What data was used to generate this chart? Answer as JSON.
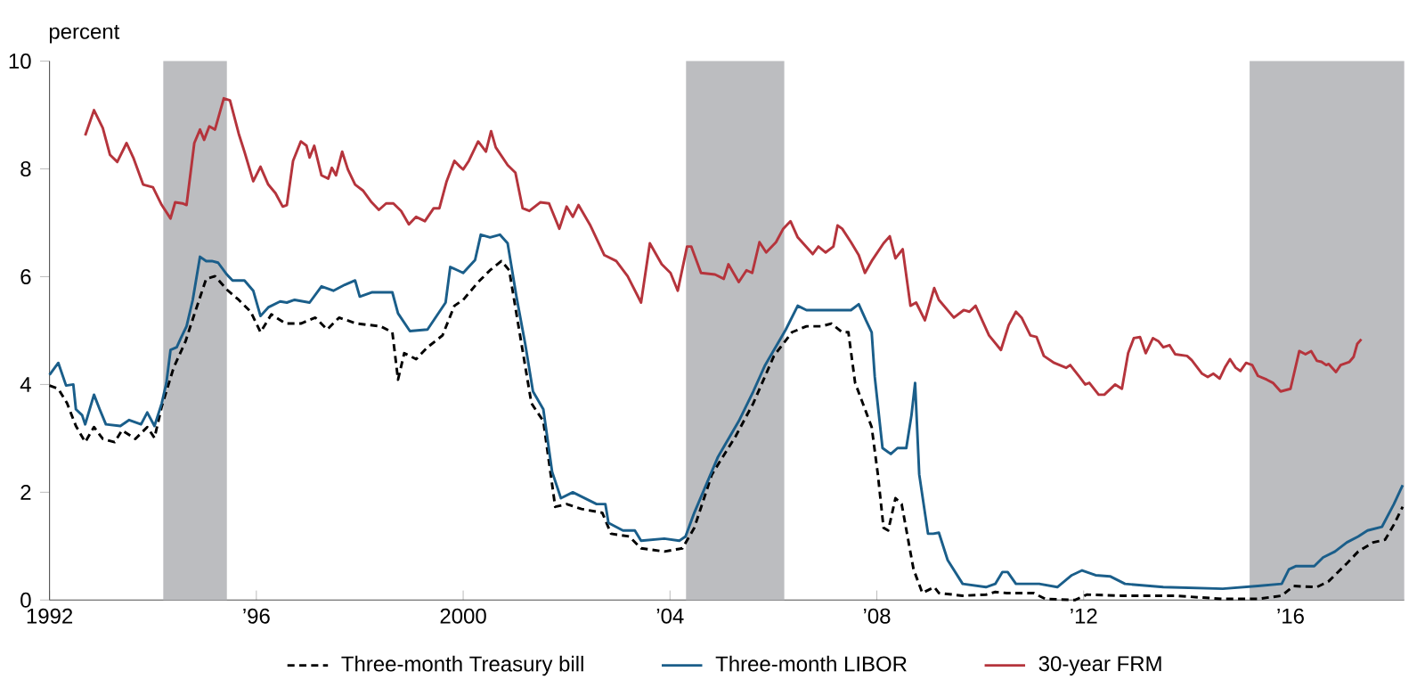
{
  "chart_data": {
    "type": "line",
    "ylabel": "percent",
    "xlim": [
      1992,
      2018.2
    ],
    "ylim": [
      0,
      10
    ],
    "xticks": [
      {
        "value": 1992,
        "label": "1992"
      },
      {
        "value": 1996,
        "label": "’96"
      },
      {
        "value": 2000,
        "label": "2000"
      },
      {
        "value": 2004,
        "label": "’04"
      },
      {
        "value": 2008,
        "label": "’08"
      },
      {
        "value": 2012,
        "label": "’12"
      },
      {
        "value": 2016,
        "label": "’16"
      }
    ],
    "yticks": [
      0,
      2,
      4,
      6,
      8,
      10
    ],
    "grid": false,
    "legend": "bottom",
    "bands": [
      {
        "axis": "x",
        "from": 1994.2,
        "to": 1995.43,
        "color": "#bcbdc0"
      },
      {
        "axis": "x",
        "from": 2004.31,
        "to": 2006.21,
        "color": "#bcbdc0"
      },
      {
        "axis": "x",
        "from": 2015.21,
        "to": 2018.2,
        "color": "#bcbdc0"
      }
    ],
    "series": [
      {
        "name": "Three-month Treasury bill",
        "color": "#000000",
        "line_style": "dashed",
        "x": [
          1992.0,
          1992.17,
          1992.34,
          1992.51,
          1992.69,
          1992.86,
          1993.03,
          1993.26,
          1993.4,
          1993.66,
          1993.89,
          1994.03,
          1994.17,
          1994.4,
          1994.63,
          1994.8,
          1995.03,
          1995.2,
          1995.43,
          1995.66,
          1995.89,
          1996.08,
          1996.29,
          1996.57,
          1996.86,
          1997.14,
          1997.37,
          1997.6,
          1997.94,
          1998.4,
          1998.63,
          1998.74,
          1998.86,
          1999.09,
          1999.31,
          1999.6,
          1999.83,
          2000.0,
          2000.29,
          2000.52,
          2000.74,
          2000.89,
          2001.09,
          2001.32,
          2001.55,
          2001.78,
          2002.0,
          2002.29,
          2002.69,
          2002.86,
          2003.21,
          2003.44,
          2003.89,
          2004.24,
          2004.47,
          2004.81,
          2005.27,
          2005.61,
          2006.01,
          2006.36,
          2006.64,
          2006.93,
          2007.12,
          2007.33,
          2007.45,
          2007.58,
          2007.9,
          2008.02,
          2008.13,
          2008.22,
          2008.36,
          2008.48,
          2008.71,
          2008.88,
          2009.11,
          2009.2,
          2009.66,
          2010.11,
          2010.29,
          2010.51,
          2011.03,
          2011.26,
          2011.83,
          2012.06,
          2012.74,
          2013.77,
          2014.69,
          2015.37,
          2015.83,
          2016.06,
          2016.51,
          2016.74,
          2017.09,
          2017.31,
          2017.6,
          2017.83,
          2018.0,
          2018.17
        ],
        "values": [
          3.98,
          3.92,
          3.65,
          3.23,
          2.93,
          3.21,
          2.99,
          2.93,
          3.15,
          2.99,
          3.21,
          3.01,
          3.59,
          4.31,
          4.8,
          5.3,
          5.96,
          6.01,
          5.76,
          5.57,
          5.35,
          4.97,
          5.3,
          5.13,
          5.13,
          5.24,
          5.02,
          5.24,
          5.13,
          5.08,
          4.97,
          4.09,
          4.58,
          4.47,
          4.69,
          4.91,
          5.46,
          5.57,
          5.9,
          6.12,
          6.29,
          6.12,
          4.97,
          3.65,
          3.32,
          1.73,
          1.78,
          1.69,
          1.62,
          1.23,
          1.18,
          0.96,
          0.9,
          0.96,
          1.34,
          2.33,
          3.04,
          3.65,
          4.53,
          4.97,
          5.08,
          5.08,
          5.13,
          4.97,
          4.97,
          4.03,
          3.21,
          2.33,
          1.34,
          1.29,
          1.89,
          1.78,
          0.57,
          0.13,
          0.24,
          0.13,
          0.08,
          0.1,
          0.15,
          0.13,
          0.13,
          0.02,
          0.0,
          0.1,
          0.08,
          0.08,
          0.02,
          0.02,
          0.08,
          0.26,
          0.24,
          0.35,
          0.68,
          0.9,
          1.07,
          1.12,
          1.4,
          1.73
        ]
      },
      {
        "name": "Three-month LIBOR",
        "color": "#1a5e8a",
        "line_style": "solid",
        "x": [
          1992.0,
          1992.17,
          1992.32,
          1992.46,
          1992.51,
          1992.63,
          1992.69,
          1992.86,
          1992.97,
          1993.09,
          1993.37,
          1993.54,
          1993.77,
          1993.89,
          1994.03,
          1994.17,
          1994.26,
          1994.34,
          1994.46,
          1994.54,
          1994.65,
          1994.77,
          1994.91,
          1995.03,
          1995.14,
          1995.26,
          1995.43,
          1995.54,
          1995.77,
          1995.94,
          1996.08,
          1996.23,
          1996.46,
          1996.59,
          1996.74,
          1997.03,
          1997.26,
          1997.49,
          1997.71,
          1997.91,
          1998.0,
          1998.23,
          1998.63,
          1998.74,
          1998.97,
          1999.31,
          1999.66,
          1999.75,
          1999.89,
          2000.0,
          2000.23,
          2000.34,
          2000.52,
          2000.71,
          2000.86,
          2001.03,
          2001.2,
          2001.35,
          2001.55,
          2001.72,
          2001.89,
          2002.12,
          2002.58,
          2002.75,
          2002.81,
          2003.09,
          2003.32,
          2003.44,
          2003.89,
          2004.18,
          2004.3,
          2004.47,
          2004.93,
          2005.33,
          2005.61,
          2005.84,
          2006.24,
          2006.47,
          2006.64,
          2007.5,
          2007.65,
          2007.79,
          2007.9,
          2007.96,
          2008.11,
          2008.27,
          2008.4,
          2008.57,
          2008.67,
          2008.74,
          2008.82,
          2008.99,
          2009.09,
          2009.2,
          2009.37,
          2009.66,
          2010.11,
          2010.29,
          2010.43,
          2010.53,
          2010.69,
          2011.14,
          2011.49,
          2011.77,
          2011.97,
          2012.23,
          2012.51,
          2012.8,
          2013.54,
          2014.69,
          2015.37,
          2015.83,
          2015.97,
          2016.11,
          2016.46,
          2016.63,
          2016.86,
          2017.09,
          2017.31,
          2017.49,
          2017.77,
          2018.0,
          2018.17
        ],
        "values": [
          4.18,
          4.4,
          3.98,
          4.0,
          3.54,
          3.43,
          3.26,
          3.81,
          3.54,
          3.26,
          3.23,
          3.34,
          3.26,
          3.48,
          3.23,
          3.65,
          4.03,
          4.64,
          4.69,
          4.86,
          5.08,
          5.57,
          6.37,
          6.29,
          6.29,
          6.26,
          6.04,
          5.93,
          5.93,
          5.74,
          5.27,
          5.43,
          5.54,
          5.52,
          5.57,
          5.52,
          5.82,
          5.74,
          5.85,
          5.93,
          5.63,
          5.71,
          5.71,
          5.32,
          4.99,
          5.02,
          5.52,
          6.18,
          6.12,
          6.07,
          6.31,
          6.78,
          6.73,
          6.78,
          6.62,
          5.63,
          4.75,
          3.87,
          3.54,
          2.38,
          1.89,
          2.0,
          1.78,
          1.78,
          1.43,
          1.29,
          1.29,
          1.1,
          1.14,
          1.1,
          1.18,
          1.62,
          2.66,
          3.32,
          3.87,
          4.36,
          5.02,
          5.46,
          5.38,
          5.38,
          5.49,
          5.19,
          4.97,
          4.14,
          2.82,
          2.71,
          2.82,
          2.82,
          3.43,
          4.03,
          2.33,
          1.23,
          1.23,
          1.25,
          0.74,
          0.3,
          0.24,
          0.3,
          0.52,
          0.52,
          0.3,
          0.3,
          0.24,
          0.46,
          0.55,
          0.46,
          0.44,
          0.3,
          0.24,
          0.21,
          0.26,
          0.3,
          0.57,
          0.63,
          0.63,
          0.79,
          0.9,
          1.07,
          1.18,
          1.29,
          1.36,
          1.78,
          2.13
        ]
      },
      {
        "name": "30-year FRM",
        "color": "#b5343c",
        "line_style": "solid",
        "x": [
          1992.69,
          1992.86,
          1993.03,
          1993.17,
          1993.31,
          1993.49,
          1993.62,
          1993.81,
          1994.0,
          1994.17,
          1994.34,
          1994.43,
          1994.57,
          1994.65,
          1994.8,
          1994.91,
          1994.99,
          1995.09,
          1995.2,
          1995.37,
          1995.49,
          1995.66,
          1995.77,
          1995.94,
          1996.08,
          1996.23,
          1996.37,
          1996.51,
          1996.59,
          1996.71,
          1996.86,
          1996.97,
          1997.03,
          1997.12,
          1997.26,
          1997.39,
          1997.46,
          1997.54,
          1997.66,
          1997.77,
          1997.91,
          1998.06,
          1998.23,
          1998.37,
          1998.51,
          1998.65,
          1998.8,
          1998.95,
          1999.09,
          1999.26,
          1999.43,
          1999.54,
          1999.68,
          1999.83,
          1999.94,
          2000.0,
          2000.11,
          2000.29,
          2000.44,
          2000.54,
          2000.63,
          2000.86,
          2001.01,
          2001.15,
          2001.28,
          2001.49,
          2001.66,
          2001.86,
          2002.0,
          2002.12,
          2002.23,
          2002.46,
          2002.73,
          2002.96,
          2003.18,
          2003.44,
          2003.61,
          2003.84,
          2004.01,
          2004.15,
          2004.33,
          2004.41,
          2004.6,
          2004.87,
          2005.04,
          2005.13,
          2005.33,
          2005.48,
          2005.59,
          2005.73,
          2005.86,
          2006.05,
          2006.19,
          2006.33,
          2006.47,
          2006.76,
          2006.87,
          2007.01,
          2007.16,
          2007.24,
          2007.33,
          2007.5,
          2007.65,
          2007.77,
          2007.9,
          2008.13,
          2008.25,
          2008.36,
          2008.5,
          2008.65,
          2008.76,
          2008.93,
          2009.11,
          2009.2,
          2009.49,
          2009.68,
          2009.79,
          2009.91,
          2010.17,
          2010.4,
          2010.55,
          2010.69,
          2010.8,
          2010.97,
          2011.09,
          2011.23,
          2011.43,
          2011.66,
          2011.74,
          2011.92,
          2012.03,
          2012.11,
          2012.29,
          2012.4,
          2012.61,
          2012.74,
          2012.86,
          2012.97,
          2013.09,
          2013.2,
          2013.34,
          2013.45,
          2013.54,
          2013.66,
          2013.77,
          2014.0,
          2014.09,
          2014.29,
          2014.4,
          2014.51,
          2014.63,
          2014.74,
          2014.83,
          2014.94,
          2015.03,
          2015.14,
          2015.26,
          2015.37,
          2015.54,
          2015.66,
          2015.81,
          2016.0,
          2016.17,
          2016.29,
          2016.4,
          2016.51,
          2016.6,
          2016.69,
          2016.74,
          2016.88,
          2016.97,
          2017.14,
          2017.22,
          2017.29,
          2017.37
        ],
        "values": [
          8.62,
          9.09,
          8.76,
          8.26,
          8.13,
          8.48,
          8.21,
          7.71,
          7.66,
          7.33,
          7.08,
          7.38,
          7.36,
          7.33,
          8.48,
          8.73,
          8.54,
          8.79,
          8.73,
          9.31,
          9.27,
          8.65,
          8.32,
          7.77,
          8.04,
          7.71,
          7.55,
          7.3,
          7.33,
          8.15,
          8.51,
          8.43,
          8.21,
          8.43,
          7.88,
          7.82,
          8.02,
          7.88,
          8.32,
          7.99,
          7.71,
          7.6,
          7.38,
          7.24,
          7.36,
          7.36,
          7.22,
          6.97,
          7.11,
          7.03,
          7.27,
          7.27,
          7.77,
          8.15,
          8.04,
          7.99,
          8.15,
          8.51,
          8.32,
          8.7,
          8.4,
          8.07,
          7.93,
          7.27,
          7.22,
          7.38,
          7.36,
          6.89,
          7.3,
          7.11,
          7.33,
          6.95,
          6.4,
          6.29,
          6.01,
          5.52,
          6.62,
          6.23,
          6.07,
          5.74,
          6.56,
          6.56,
          6.07,
          6.04,
          5.96,
          6.23,
          5.9,
          6.12,
          6.07,
          6.64,
          6.45,
          6.64,
          6.89,
          7.03,
          6.73,
          6.42,
          6.56,
          6.45,
          6.56,
          6.95,
          6.89,
          6.64,
          6.4,
          6.07,
          6.29,
          6.62,
          6.75,
          6.34,
          6.51,
          5.46,
          5.52,
          5.19,
          5.79,
          5.57,
          5.24,
          5.38,
          5.35,
          5.46,
          4.91,
          4.64,
          5.1,
          5.35,
          5.24,
          4.91,
          4.88,
          4.53,
          4.4,
          4.31,
          4.36,
          4.14,
          4.0,
          4.03,
          3.81,
          3.81,
          4.0,
          3.92,
          4.58,
          4.86,
          4.88,
          4.58,
          4.86,
          4.8,
          4.69,
          4.73,
          4.56,
          4.53,
          4.45,
          4.2,
          4.14,
          4.2,
          4.11,
          4.33,
          4.47,
          4.31,
          4.25,
          4.4,
          4.36,
          4.16,
          4.09,
          4.03,
          3.87,
          3.92,
          4.62,
          4.56,
          4.62,
          4.44,
          4.42,
          4.36,
          4.38,
          4.23,
          4.36,
          4.42,
          4.51,
          4.75,
          4.84
        ]
      }
    ]
  }
}
